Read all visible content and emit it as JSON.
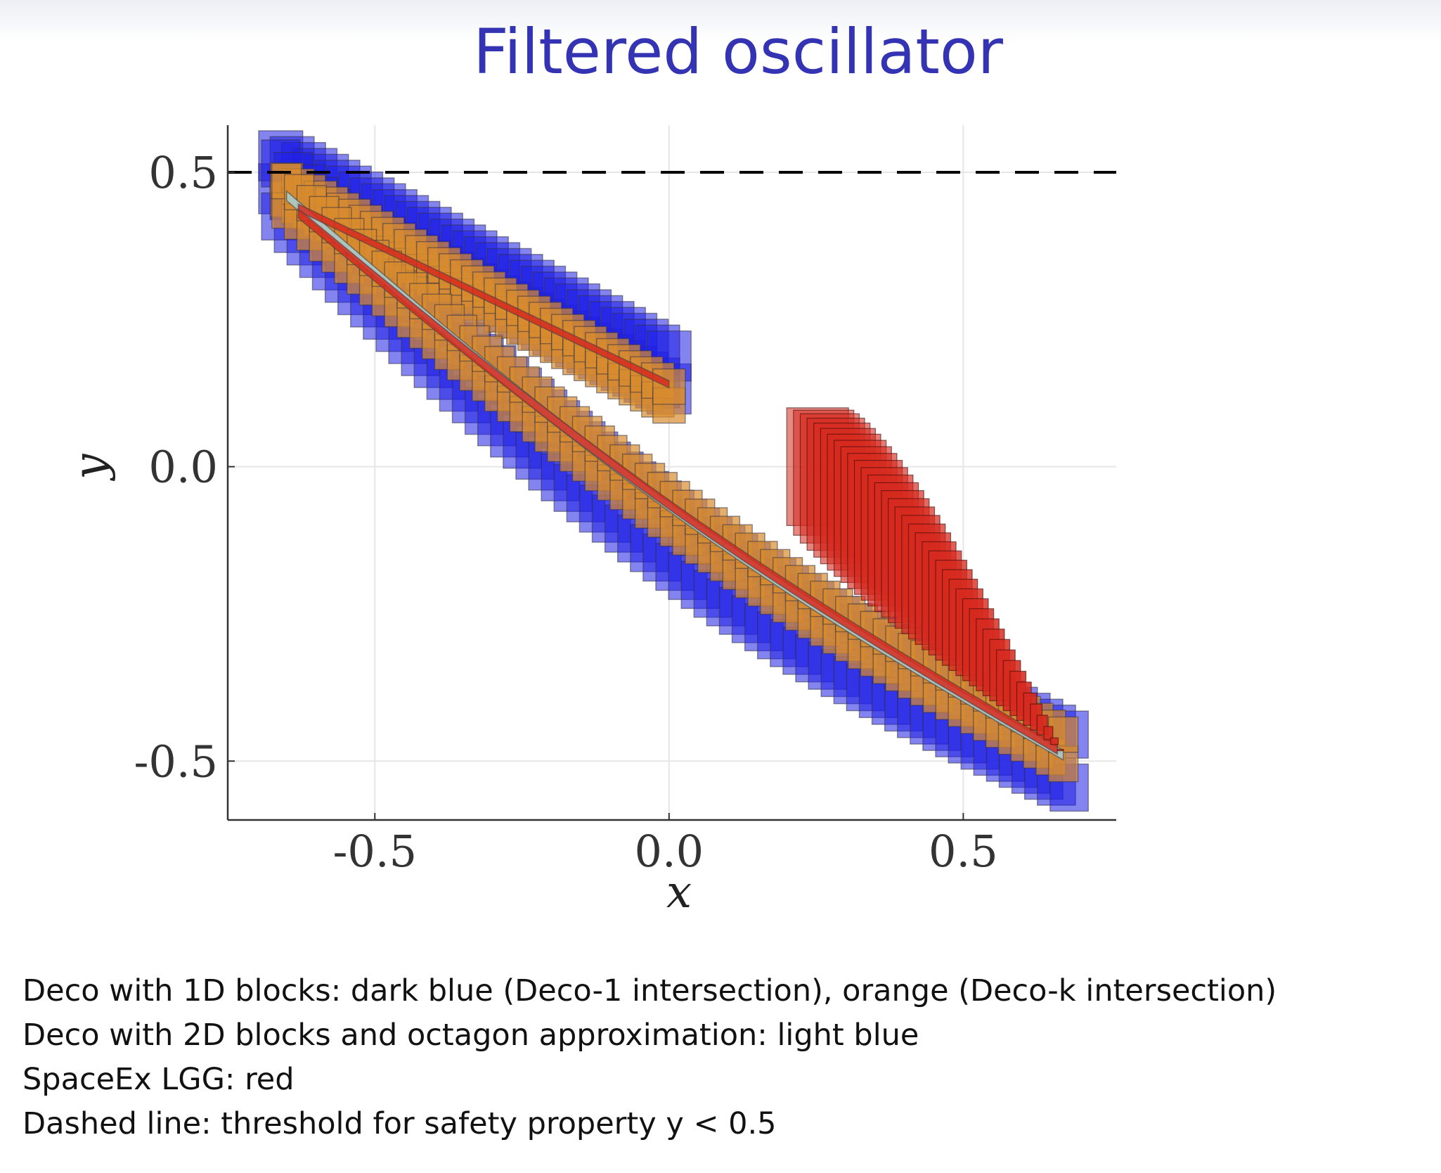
{
  "slide": {
    "title": "Filtered oscillator",
    "caption_lines": [
      "Deco with 1D blocks: dark blue (Deco-1 intersection), orange (Deco-k intersection)",
      "Deco with 2D blocks and octagon approximation: light blue",
      "SpaceEx LGG: red",
      "Dashed line: threshold for safety property y < 0.5"
    ]
  },
  "colors": {
    "title": "#3333b3",
    "deco1_blue": "#1f1fe6",
    "decok_orange": "#d98b2e",
    "octagon_lightblue": "#a9cfd6",
    "spaceex_red": "#d62a1f",
    "threshold_dashed": "#000000"
  },
  "chart_data": {
    "type": "reachset-boxes",
    "xlabel": "x",
    "ylabel": "y",
    "xlim": [
      -0.75,
      0.76
    ],
    "ylim": [
      -0.6,
      0.58
    ],
    "xticks": [
      -0.5,
      0.0,
      0.5
    ],
    "yticks": [
      -0.5,
      0.0,
      0.5
    ],
    "xtick_labels": [
      "-0.5",
      "0.0",
      "0.5"
    ],
    "ytick_labels": [
      "-0.5",
      "0.0",
      "0.5"
    ],
    "grid": true,
    "threshold_line": {
      "y": 0.5,
      "style": "dashed"
    },
    "series": [
      {
        "key": "deco1",
        "color": "#1f1fe6",
        "upper_branch": {
          "x_start": -0.66,
          "y_start": 0.5,
          "x_end": 0.0,
          "y_end": 0.16,
          "half_width": 0.028,
          "box_w": 0.075,
          "box_h": 0.085
        },
        "lower_branch": {
          "x_start": -0.66,
          "y_start": 0.47,
          "x_end": 0.68,
          "y_end": -0.5,
          "sag": 0.11,
          "half_width": 0.045,
          "box_w": 0.065,
          "box_h": 0.08
        }
      },
      {
        "key": "decok",
        "color": "#d98b2e",
        "upper_branch": {
          "x_start": -0.65,
          "y_start": 0.47,
          "x_end": 0.0,
          "y_end": 0.12,
          "half_width": 0.016,
          "box_w": 0.055,
          "box_h": 0.06
        },
        "lower_branch": {
          "x_start": -0.65,
          "y_start": 0.46,
          "x_end": 0.67,
          "y_end": -0.48,
          "sag": 0.07,
          "half_width": 0.025,
          "box_w": 0.05,
          "box_h": 0.06
        }
      },
      {
        "key": "octagon",
        "color": "#a9cfd6",
        "lower_branch": {
          "x_start": -0.65,
          "y_start": 0.46,
          "x_end": 0.67,
          "y_end": -0.49,
          "sag": 0.06,
          "half_width": 0.008
        }
      },
      {
        "key": "spaceex",
        "color": "#d62a1f",
        "upper_branch": {
          "x_start": -0.63,
          "y_start": 0.44,
          "x_end": 0.0,
          "y_end": 0.14,
          "half_width": 0.006
        },
        "lower_branch": {
          "x_start": -0.63,
          "y_start": 0.43,
          "x_end": 0.66,
          "y_end": -0.48,
          "sag": 0.05,
          "half_width": 0.008
        },
        "fan": {
          "x_start": 0.2,
          "x_end": 0.66,
          "y_top_start": 0.1,
          "y_bottom_start": -0.1,
          "y_end": -0.48,
          "box_w": 0.105
        }
      }
    ]
  }
}
